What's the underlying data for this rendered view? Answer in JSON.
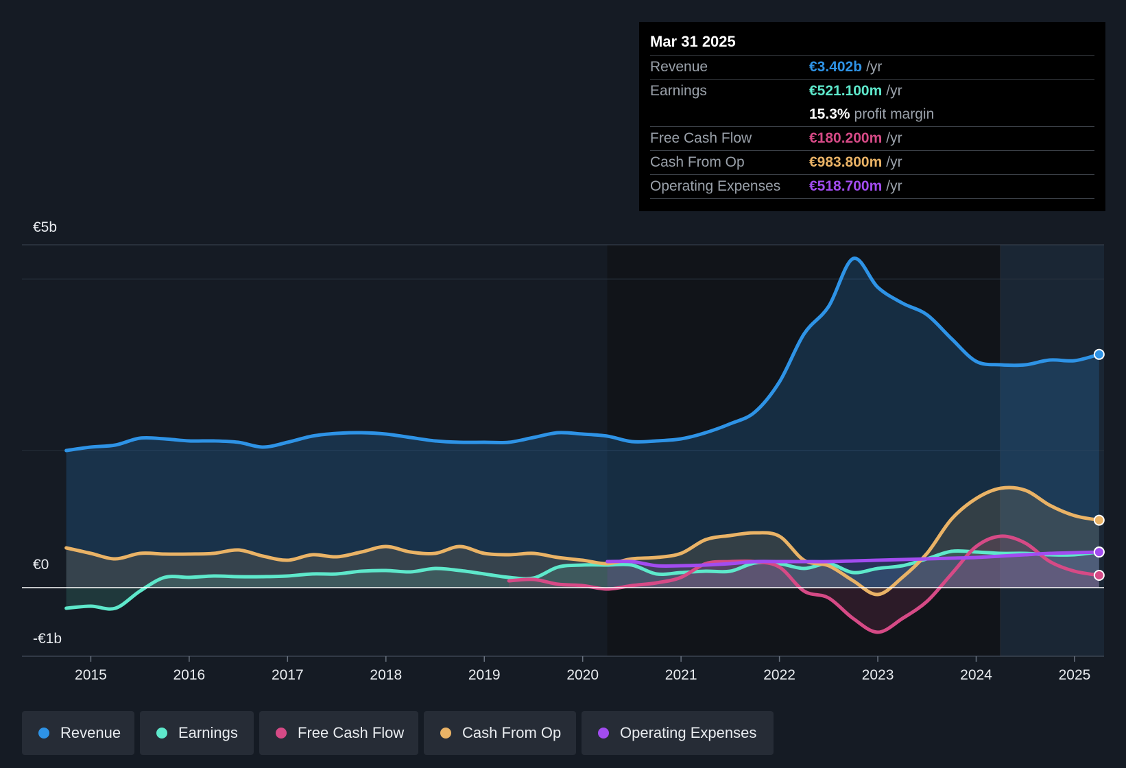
{
  "y_axis_labels": {
    "top": "€5b",
    "zero": "€0",
    "bottom": "-€1b"
  },
  "tooltip": {
    "date": "Mar 31 2025",
    "rows": [
      {
        "label": "Revenue",
        "value": "€3.402b",
        "unit": "/yr",
        "color": "#2e93e6"
      },
      {
        "label": "Earnings",
        "value": "€521.100m",
        "unit": "/yr",
        "color": "#5ee8cb"
      },
      {
        "label": "",
        "value": "15.3%",
        "unit": "profit margin",
        "color": "#ffffff"
      },
      {
        "label": "Free Cash Flow",
        "value": "€180.200m",
        "unit": "/yr",
        "color": "#d64a86"
      },
      {
        "label": "Cash From Op",
        "value": "€983.800m",
        "unit": "/yr",
        "color": "#eab366"
      },
      {
        "label": "Operating Expenses",
        "value": "€518.700m",
        "unit": "/yr",
        "color": "#a24cf0"
      }
    ]
  },
  "legend": [
    {
      "label": "Revenue",
      "color": "#2e93e6"
    },
    {
      "label": "Earnings",
      "color": "#5ee8cb"
    },
    {
      "label": "Free Cash Flow",
      "color": "#d64a86"
    },
    {
      "label": "Cash From Op",
      "color": "#eab366"
    },
    {
      "label": "Operating Expenses",
      "color": "#a24cf0"
    }
  ],
  "chart_data": {
    "type": "line",
    "title": "",
    "xlabel": "",
    "ylabel": "",
    "ylim": [
      -1,
      5
    ],
    "xlim": [
      2014.3,
      2025.3
    ],
    "x_ticks": [
      "2015",
      "2016",
      "2017",
      "2018",
      "2019",
      "2020",
      "2021",
      "2022",
      "2023",
      "2024",
      "2025"
    ],
    "forecast_region_start": 2024.25,
    "series": [
      {
        "name": "Revenue",
        "color": "#2e93e6",
        "fill": true,
        "x": [
          2014.75,
          2015.0,
          2015.25,
          2015.5,
          2015.75,
          2016.0,
          2016.25,
          2016.5,
          2016.75,
          2017.0,
          2017.25,
          2017.5,
          2017.75,
          2018.0,
          2018.25,
          2018.5,
          2018.75,
          2019.0,
          2019.25,
          2019.5,
          2019.75,
          2020.0,
          2020.25,
          2020.5,
          2020.75,
          2021.0,
          2021.25,
          2021.5,
          2021.75,
          2022.0,
          2022.25,
          2022.5,
          2022.75,
          2023.0,
          2023.25,
          2023.5,
          2023.75,
          2024.0,
          2024.25,
          2024.5,
          2024.75,
          2025.0,
          2025.25
        ],
        "values": [
          2.0,
          2.05,
          2.08,
          2.18,
          2.17,
          2.14,
          2.14,
          2.12,
          2.05,
          2.12,
          2.21,
          2.25,
          2.26,
          2.24,
          2.19,
          2.14,
          2.12,
          2.12,
          2.12,
          2.19,
          2.26,
          2.24,
          2.21,
          2.13,
          2.14,
          2.17,
          2.26,
          2.39,
          2.56,
          3.0,
          3.7,
          4.1,
          4.8,
          4.38,
          4.15,
          3.98,
          3.63,
          3.3,
          3.25,
          3.25,
          3.32,
          3.31,
          3.402
        ]
      },
      {
        "name": "Earnings",
        "color": "#5ee8cb",
        "fill": true,
        "x": [
          2014.75,
          2015.0,
          2015.25,
          2015.5,
          2015.75,
          2016.0,
          2016.25,
          2016.5,
          2016.75,
          2017.0,
          2017.25,
          2017.5,
          2017.75,
          2018.0,
          2018.25,
          2018.5,
          2018.75,
          2019.0,
          2019.25,
          2019.5,
          2019.75,
          2020.0,
          2020.25,
          2020.5,
          2020.75,
          2021.0,
          2021.25,
          2021.5,
          2021.75,
          2022.0,
          2022.25,
          2022.5,
          2022.75,
          2023.0,
          2023.25,
          2023.5,
          2023.75,
          2024.0,
          2024.25,
          2024.5,
          2024.75,
          2025.0,
          2025.25
        ],
        "values": [
          -0.3,
          -0.27,
          -0.3,
          -0.05,
          0.15,
          0.15,
          0.17,
          0.16,
          0.16,
          0.17,
          0.2,
          0.2,
          0.24,
          0.25,
          0.23,
          0.28,
          0.25,
          0.2,
          0.15,
          0.14,
          0.3,
          0.33,
          0.33,
          0.33,
          0.2,
          0.22,
          0.24,
          0.24,
          0.36,
          0.35,
          0.28,
          0.35,
          0.22,
          0.28,
          0.32,
          0.42,
          0.53,
          0.52,
          0.5,
          0.5,
          0.48,
          0.48,
          0.521
        ]
      },
      {
        "name": "Free Cash Flow",
        "color": "#d64a86",
        "fill": true,
        "x": [
          2019.25,
          2019.5,
          2019.75,
          2020.0,
          2020.25,
          2020.5,
          2020.75,
          2021.0,
          2021.25,
          2021.5,
          2021.75,
          2022.0,
          2022.25,
          2022.5,
          2022.75,
          2023.0,
          2023.25,
          2023.5,
          2023.75,
          2024.0,
          2024.25,
          2024.5,
          2024.75,
          2025.0,
          2025.25
        ],
        "values": [
          0.1,
          0.12,
          0.05,
          0.03,
          -0.02,
          0.03,
          0.07,
          0.15,
          0.35,
          0.38,
          0.38,
          0.3,
          -0.05,
          -0.15,
          -0.45,
          -0.65,
          -0.45,
          -0.2,
          0.2,
          0.6,
          0.75,
          0.65,
          0.38,
          0.24,
          0.18
        ]
      },
      {
        "name": "Cash From Op",
        "color": "#eab366",
        "fill": true,
        "x": [
          2014.75,
          2015.0,
          2015.25,
          2015.5,
          2015.75,
          2016.0,
          2016.25,
          2016.5,
          2016.75,
          2017.0,
          2017.25,
          2017.5,
          2017.75,
          2018.0,
          2018.25,
          2018.5,
          2018.75,
          2019.0,
          2019.25,
          2019.5,
          2019.75,
          2020.0,
          2020.25,
          2020.5,
          2020.75,
          2021.0,
          2021.25,
          2021.5,
          2021.75,
          2022.0,
          2022.25,
          2022.5,
          2022.75,
          2023.0,
          2023.25,
          2023.5,
          2023.75,
          2024.0,
          2024.25,
          2024.5,
          2024.75,
          2025.0,
          2025.25
        ],
        "values": [
          0.58,
          0.5,
          0.42,
          0.5,
          0.49,
          0.49,
          0.5,
          0.55,
          0.46,
          0.4,
          0.48,
          0.45,
          0.52,
          0.6,
          0.52,
          0.5,
          0.6,
          0.5,
          0.48,
          0.5,
          0.44,
          0.4,
          0.35,
          0.42,
          0.44,
          0.5,
          0.7,
          0.76,
          0.8,
          0.75,
          0.4,
          0.32,
          0.1,
          -0.1,
          0.15,
          0.5,
          1.0,
          1.3,
          1.45,
          1.42,
          1.2,
          1.05,
          0.984
        ]
      },
      {
        "name": "Operating Expenses",
        "color": "#a24cf0",
        "fill": true,
        "x": [
          2020.25,
          2020.5,
          2020.75,
          2021.0,
          2021.25,
          2021.5,
          2021.75,
          2022.0,
          2022.25,
          2022.5,
          2022.75,
          2023.0,
          2023.25,
          2023.5,
          2023.75,
          2024.0,
          2024.25,
          2024.5,
          2024.75,
          2025.0,
          2025.25
        ],
        "values": [
          0.38,
          0.38,
          0.32,
          0.32,
          0.33,
          0.35,
          0.38,
          0.38,
          0.38,
          0.38,
          0.39,
          0.4,
          0.41,
          0.42,
          0.43,
          0.44,
          0.46,
          0.48,
          0.5,
          0.51,
          0.519
        ]
      }
    ]
  }
}
